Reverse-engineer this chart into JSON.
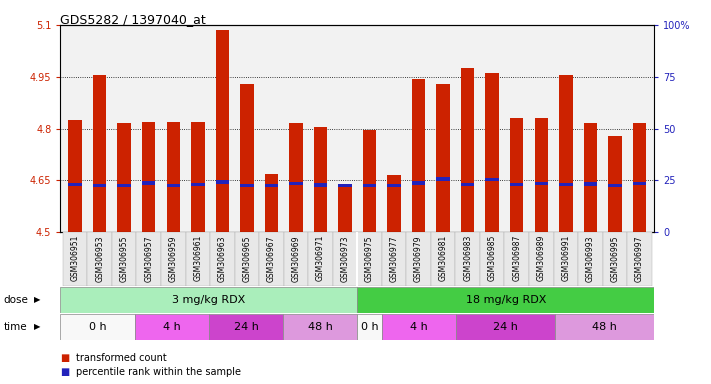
{
  "title": "GDS5282 / 1397040_at",
  "samples": [
    "GSM306951",
    "GSM306953",
    "GSM306955",
    "GSM306957",
    "GSM306959",
    "GSM306961",
    "GSM306963",
    "GSM306965",
    "GSM306967",
    "GSM306969",
    "GSM306971",
    "GSM306973",
    "GSM306975",
    "GSM306977",
    "GSM306979",
    "GSM306981",
    "GSM306983",
    "GSM306985",
    "GSM306987",
    "GSM306989",
    "GSM306991",
    "GSM306993",
    "GSM306995",
    "GSM306997"
  ],
  "bar_values": [
    4.826,
    4.956,
    4.817,
    4.82,
    4.82,
    4.82,
    5.085,
    4.93,
    4.67,
    4.815,
    4.805,
    4.638,
    4.795,
    4.665,
    4.945,
    4.928,
    4.975,
    4.96,
    4.83,
    4.83,
    4.955,
    4.815,
    4.78,
    4.815
  ],
  "percentile_values": [
    4.638,
    4.636,
    4.635,
    4.643,
    4.636,
    4.638,
    4.645,
    4.636,
    4.636,
    4.641,
    4.637,
    4.635,
    4.636,
    4.636,
    4.643,
    4.654,
    4.638,
    4.653,
    4.639,
    4.642,
    4.638,
    4.64,
    4.636,
    4.641
  ],
  "ymin": 4.5,
  "ymax": 5.1,
  "yticks": [
    4.5,
    4.65,
    4.8,
    4.95,
    5.1
  ],
  "ytick_labels": [
    "4.5",
    "4.65",
    "4.8",
    "4.95",
    "5.1"
  ],
  "right_yticks": [
    0,
    25,
    50,
    75,
    100
  ],
  "right_ytick_labels": [
    "0",
    "25",
    "50",
    "75",
    "100%"
  ],
  "bar_color": "#cc2200",
  "percentile_color": "#2222bb",
  "dose_groups": [
    {
      "label": "3 mg/kg RDX",
      "start": 0,
      "end": 12,
      "color": "#aaeebb"
    },
    {
      "label": "18 mg/kg RDX",
      "start": 12,
      "end": 24,
      "color": "#44cc44"
    }
  ],
  "time_groups": [
    {
      "label": "0 h",
      "start": 0,
      "end": 3,
      "color": "#f8f8f8"
    },
    {
      "label": "4 h",
      "start": 3,
      "end": 6,
      "color": "#ee66ee"
    },
    {
      "label": "24 h",
      "start": 6,
      "end": 9,
      "color": "#cc44cc"
    },
    {
      "label": "48 h",
      "start": 9,
      "end": 12,
      "color": "#dd99dd"
    },
    {
      "label": "0 h",
      "start": 12,
      "end": 13,
      "color": "#f8f8f8"
    },
    {
      "label": "4 h",
      "start": 13,
      "end": 16,
      "color": "#ee66ee"
    },
    {
      "label": "24 h",
      "start": 16,
      "end": 20,
      "color": "#cc44cc"
    },
    {
      "label": "48 h",
      "start": 20,
      "end": 24,
      "color": "#dd99dd"
    }
  ],
  "legend_items": [
    {
      "label": "transformed count",
      "color": "#cc2200"
    },
    {
      "label": "percentile rank within the sample",
      "color": "#2222bb"
    }
  ],
  "plot_bg": "#f2f2f2",
  "bar_width": 0.55
}
